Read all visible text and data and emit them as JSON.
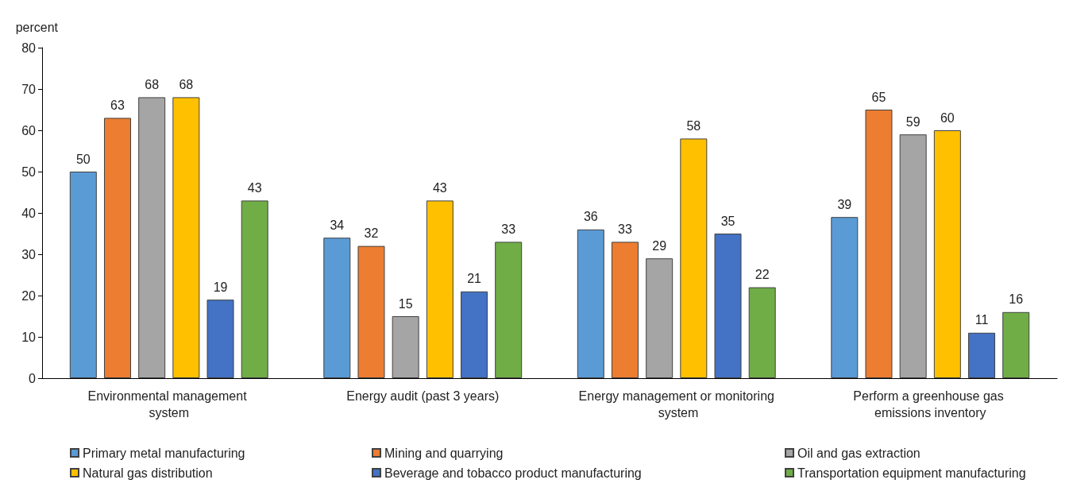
{
  "chart_data": {
    "type": "bar",
    "ylabel": "percent",
    "categories": [
      "Environmental management system",
      "Energy audit (past 3 years)",
      "Energy management or monitoring system",
      "Perform a greenhouse gas emissions inventory"
    ],
    "series": [
      {
        "name": "Primary metal manufacturing",
        "color": "#5b9bd5",
        "values": [
          50,
          34,
          36,
          39
        ]
      },
      {
        "name": "Mining and quarrying",
        "color": "#ed7d31",
        "values": [
          63,
          32,
          33,
          65
        ]
      },
      {
        "name": "Oil and gas extraction",
        "color": "#a5a5a5",
        "values": [
          68,
          15,
          29,
          59
        ]
      },
      {
        "name": "Natural gas distribution",
        "color": "#ffc000",
        "values": [
          68,
          43,
          58,
          60
        ]
      },
      {
        "name": "Beverage and tobacco product manufacturing",
        "color": "#4472c4",
        "values": [
          19,
          21,
          35,
          11
        ]
      },
      {
        "name": "Transportation equipment manufacturing",
        "color": "#70ad47",
        "values": [
          43,
          33,
          22,
          16
        ]
      }
    ],
    "ylim": [
      0,
      80
    ],
    "yticks": [
      0,
      10,
      20,
      30,
      40,
      50,
      60,
      70,
      80
    ],
    "grid": false,
    "legend": "bottom",
    "data_labels": true
  }
}
